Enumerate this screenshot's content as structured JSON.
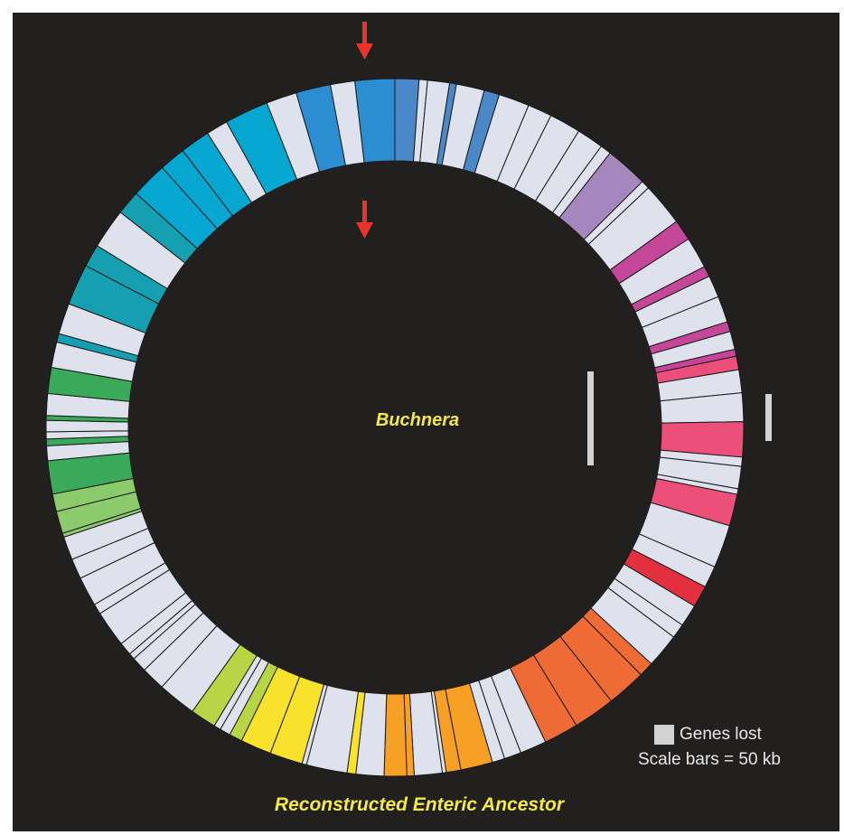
{
  "center_label": "Buchnera",
  "bottom_title": "Reconstructed Enteric Ancestor",
  "legend": {
    "genes_lost_label": "Genes lost",
    "scale_label": "Scale bars = 50 kb"
  },
  "colors": {
    "background": "#221f1f",
    "genes_lost": "#dde2ec",
    "arrow": "#e8332a",
    "label": "#f3e94a",
    "scale_bar": "#d0d2d3",
    "spectrum": [
      "#4a88c8",
      "#a586bd",
      "#c4479a",
      "#ec4f7a",
      "#e2303f",
      "#ee6b35",
      "#f6a126",
      "#f8e22b",
      "#b8d546",
      "#8ccb6b",
      "#3aaa5a",
      "#159fb0",
      "#05a6cf",
      "#2c8ed2"
    ]
  }
}
